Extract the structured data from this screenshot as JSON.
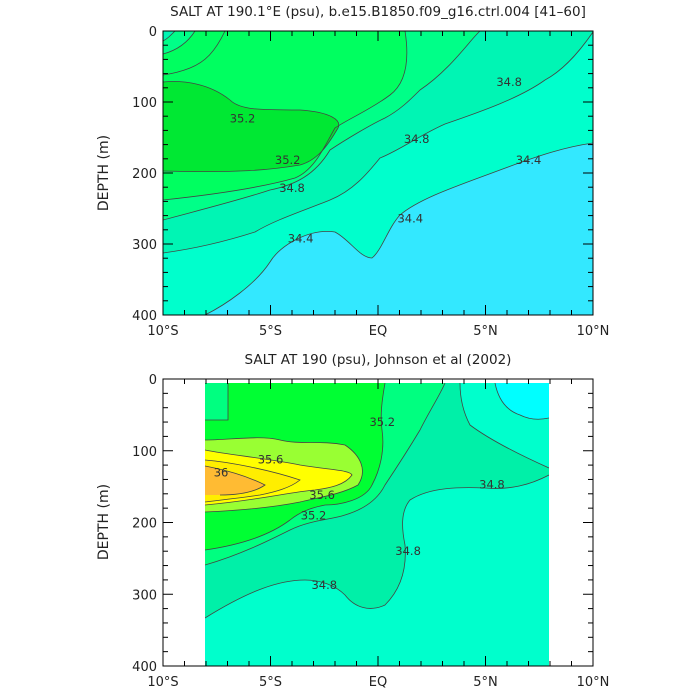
{
  "chart_data": [
    {
      "type": "contour",
      "title": "SALT AT 190.1°E (psu), b.e15.B1850.f09_g16.ctrl.004 [41–60]",
      "ylabel": "DEPTH (m)",
      "xlim": [
        -10,
        10
      ],
      "ylim": [
        400,
        0
      ],
      "x_ticks": [
        -10,
        -5,
        0,
        5,
        10
      ],
      "x_tick_labels": [
        "10°S",
        "5°S",
        "EQ",
        "5°N",
        "10°N"
      ],
      "y_ticks": [
        0,
        100,
        200,
        300,
        400
      ],
      "y_tick_labels": [
        "0",
        "100",
        "200",
        "300",
        "400"
      ],
      "contour_labels": [
        {
          "text": "35.2",
          "x": -6.3,
          "y": 123
        },
        {
          "text": "35.2",
          "x": -4.2,
          "y": 182
        },
        {
          "text": "34.8",
          "x": -4.0,
          "y": 221
        },
        {
          "text": "34.8",
          "x": 1.8,
          "y": 152
        },
        {
          "text": "34.8",
          "x": 6.1,
          "y": 72
        },
        {
          "text": "34.4",
          "x": -3.6,
          "y": 292
        },
        {
          "text": "34.4",
          "x": 1.5,
          "y": 264
        },
        {
          "text": "34.4",
          "x": 7.0,
          "y": 182
        }
      ],
      "fill_colors": {
        "below_34.4": "#33e8ff",
        "34.4_34.6": "#00ffcc",
        "34.6_34.8": "#00f5b4",
        "34.8_35.0": "#00ff88",
        "35.0_35.2": "#00ff60",
        "above_35.2": "#00e833"
      }
    },
    {
      "type": "contour",
      "title": "SALT AT 190 (psu), Johnson et al (2002)",
      "ylabel": "DEPTH (m)",
      "xlim": [
        -10,
        10
      ],
      "ylim": [
        400,
        0
      ],
      "data_x_range": [
        -8,
        8
      ],
      "data_y_range": [
        5,
        400
      ],
      "x_ticks": [
        -10,
        -5,
        0,
        5,
        10
      ],
      "x_tick_labels": [
        "10°S",
        "5°S",
        "EQ",
        "5°N",
        "10°N"
      ],
      "y_ticks": [
        0,
        100,
        200,
        300,
        400
      ],
      "y_tick_labels": [
        "0",
        "100",
        "200",
        "300",
        "400"
      ],
      "contour_labels": [
        {
          "text": "35.2",
          "x": 0.2,
          "y": 60
        },
        {
          "text": "35.6",
          "x": -5.0,
          "y": 112
        },
        {
          "text": "36",
          "x": -7.3,
          "y": 130
        },
        {
          "text": "35.6",
          "x": -2.6,
          "y": 162
        },
        {
          "text": "35.2",
          "x": -3.0,
          "y": 190
        },
        {
          "text": "34.8",
          "x": 1.4,
          "y": 240
        },
        {
          "text": "34.8",
          "x": -2.5,
          "y": 287
        },
        {
          "text": "34.8",
          "x": 5.3,
          "y": 147
        }
      ],
      "fill_colors": {
        "below_34.6": "#00ffff",
        "34.6_34.8": "#00ffcc",
        "34.8_35.0": "#00f0a8",
        "35.0_35.2": "#00ff80",
        "35.2_35.4": "#00ff33",
        "35.4_35.6": "#99ff33",
        "35.6_35.8": "#ffff00",
        "35.8_36.0": "#ffee00",
        "above_36.0": "#ffbb33"
      }
    }
  ]
}
